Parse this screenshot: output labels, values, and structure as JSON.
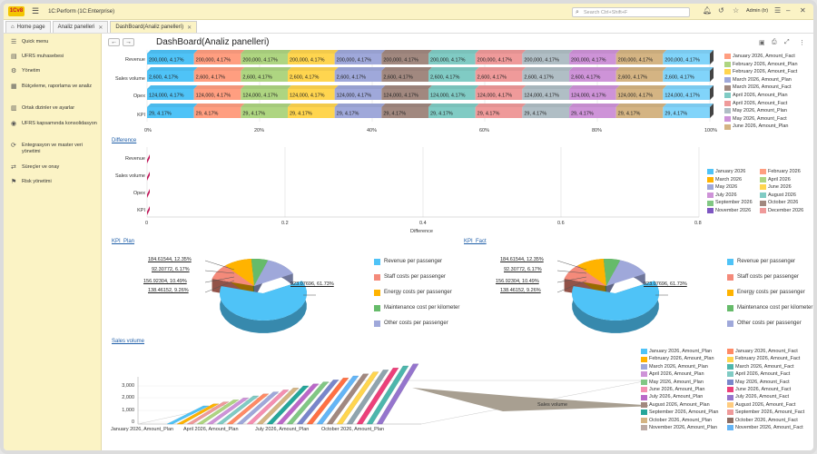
{
  "app": {
    "logo": "1Cv8",
    "title": "1C:Perform  (1C:Enterprise)",
    "search_placeholder": "Search Ctrl+Shift+F",
    "user": "Admin (tr)"
  },
  "tabs": [
    {
      "label": "Home page"
    },
    {
      "label": "Analiz panelleri"
    },
    {
      "label": "DashBoard(Analiz panelleri)"
    }
  ],
  "sidebar": {
    "items": [
      {
        "label": "Quick menu",
        "icon": "menu-icon"
      },
      {
        "label": "UFRS muhasebesi",
        "icon": "list-icon"
      },
      {
        "label": "Yönetim",
        "icon": "gear-icon"
      },
      {
        "label": "Bütçeleme, raporlama ve analiz",
        "icon": "chart-icon"
      },
      {
        "label": "Ortak dizinler ve ayarlar",
        "icon": "book-icon"
      },
      {
        "label": "UFRS kapsamında konsolidasyon",
        "icon": "circle-icon"
      },
      {
        "label": "Entegrasyon ve master veri yönetimi",
        "icon": "sync-icon"
      },
      {
        "label": "Süreçler ve onay",
        "icon": "flow-icon"
      },
      {
        "label": "Risk yönetimi",
        "icon": "risk-icon"
      }
    ]
  },
  "page": {
    "title": "DashBoard(Analiz panelleri)"
  },
  "colors": [
    "#4fc3f7",
    "#ff9e80",
    "#aed581",
    "#ffd54f",
    "#9fa8da",
    "#a1887f",
    "#80cbc4",
    "#ef9a9a",
    "#b0bec5",
    "#ce93d8",
    "#d4b483",
    "#81d4fa"
  ],
  "chart_data": [
    {
      "type": "bar",
      "stacked": "percent",
      "categories": [
        "Revenue",
        "Sales volume",
        "Opex",
        "KPI"
      ],
      "segment_labels": [
        "200,000, 4.17%",
        "2,600, 4.17%",
        "124,000, 4.17%",
        "29, 4.17%"
      ],
      "segments_per_row": 12,
      "xticks": [
        "0%",
        "20%",
        "40%",
        "60%",
        "80%",
        "100%"
      ],
      "legend": [
        "January 2026, Amount_Fact",
        "February 2026, Amount_Plan",
        "February 2026, Amount_Fact",
        "March 2026, Amount_Plan",
        "March 2026, Amount_Fact",
        "April 2026, Amount_Plan",
        "April 2026, Amount_Fact",
        "May 2026, Amount_Plan",
        "May 2026, Amount_Fact",
        "June 2026, Amount_Plan"
      ]
    },
    {
      "type": "bar",
      "title": "Difference",
      "categories": [
        "Revenue",
        "Sales volume",
        "Opex",
        "KPI"
      ],
      "values": [
        0,
        0,
        0,
        0
      ],
      "xlabel": "Difference",
      "xticks": [
        "0",
        "0.2",
        "0.4",
        "0.6",
        "0.8"
      ],
      "legend": [
        "January 2026",
        "February 2026",
        "March 2026",
        "April 2026",
        "May 2026",
        "June 2026",
        "July 2026",
        "August 2026",
        "September 2026",
        "October 2026",
        "November 2026",
        "December 2026"
      ]
    },
    {
      "type": "pie",
      "title": "KPI_Plan",
      "labels": [
        "Revenue per passenger",
        "Staff costs per passenger",
        "Energy costs per passenger",
        "Maintenance cost per kilometer",
        "Other costs per passenger"
      ],
      "values": [
        923.07696,
        138.46152,
        156.92304,
        92.30772,
        184.61544
      ],
      "slice_labels": [
        "923.07696, 61.73%",
        "138.46152, 9.26%",
        "156.92304, 10.49%",
        "92.30772, 6.17%",
        "184.61544, 12.35%"
      ]
    },
    {
      "type": "pie",
      "title": "KPI_Fact",
      "labels": [
        "Revenue per passenger",
        "Staff costs per passenger",
        "Energy costs per passenger",
        "Maintenance cost per kilometer",
        "Other costs per passenger"
      ],
      "values": [
        923.07696,
        138.46152,
        156.92304,
        92.30772,
        184.61544
      ],
      "slice_labels": [
        "923.07696, 61.73%",
        "138.46152, 9.26%",
        "156.92304, 10.49%",
        "92.30772, 6.17%",
        "184.61544, 12.35%"
      ]
    },
    {
      "type": "area",
      "title": "Sales volume",
      "yticks": [
        "0",
        "1,000",
        "2,000",
        "3,000"
      ],
      "series_label": "Sales volume",
      "xticks": [
        "January 2026, Amount_Plan",
        "April 2026, Amount_Plan",
        "July 2026, Amount_Plan",
        "October 2026, Amount_Plan"
      ],
      "legend_left": [
        "January 2026, Amount_Plan",
        "February 2026, Amount_Plan",
        "March 2026, Amount_Plan",
        "April 2026, Amount_Plan",
        "May 2026, Amount_Plan",
        "June 2026, Amount_Plan",
        "July 2026, Amount_Plan",
        "August 2026, Amount_Plan",
        "September 2026, Amount_Plan",
        "October 2026, Amount_Plan",
        "November 2026, Amount_Plan"
      ],
      "legend_right": [
        "January 2026, Amount_Fact",
        "February 2026, Amount_Fact",
        "March 2026, Amount_Fact",
        "April 2026, Amount_Fact",
        "May 2026, Amount_Fact",
        "June 2026, Amount_Fact",
        "July 2026, Amount_Fact",
        "August 2026, Amount_Fact",
        "September 2026, Amount_Fact",
        "October 2026, Amount_Fact",
        "November 2026, Amount_Fact"
      ]
    }
  ]
}
